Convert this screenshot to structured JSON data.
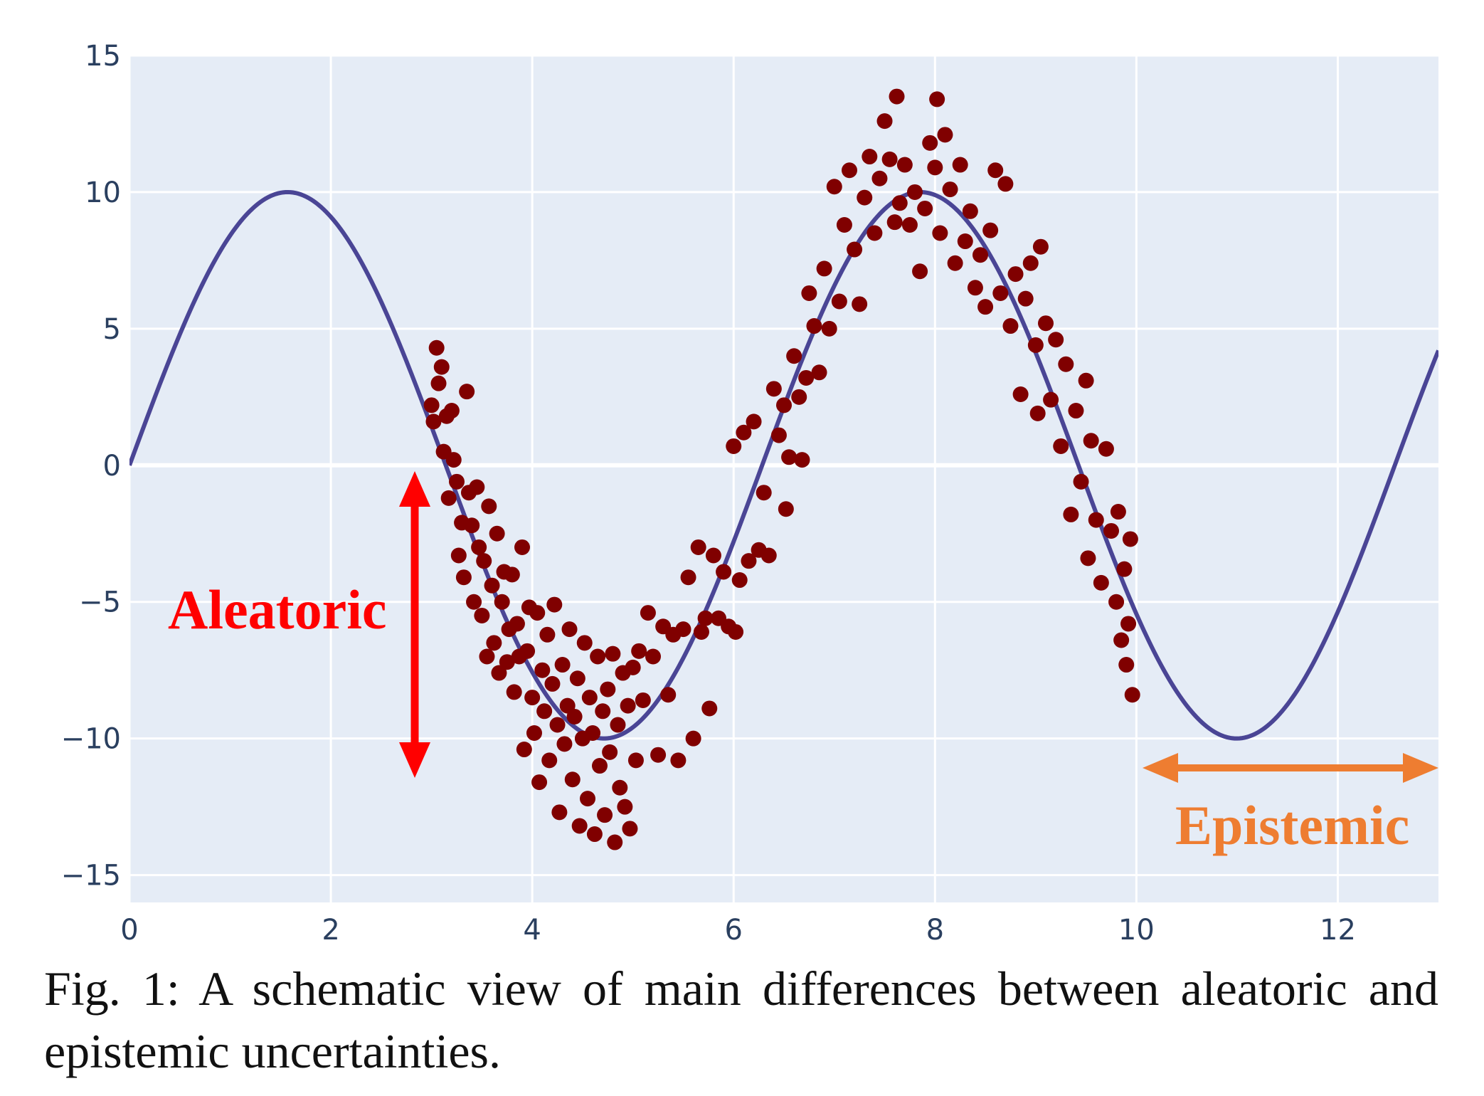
{
  "caption": {
    "text": "Fig. 1: A schematic view of main differences between aleatoric and epistemic uncertainties."
  },
  "chart_data": {
    "type": "scatter",
    "title": "",
    "xlabel": "",
    "ylabel": "",
    "xlim": [
      0,
      13
    ],
    "ylim": [
      -16,
      15
    ],
    "x_ticks": [
      0,
      2,
      4,
      6,
      8,
      10,
      12
    ],
    "y_ticks": [
      15,
      10,
      5,
      0,
      -5,
      -10,
      -15
    ],
    "y_tick_labels": [
      "15",
      "10",
      "5",
      "0",
      "−5",
      "−10",
      "−15"
    ],
    "grid": true,
    "background_color": "#e5ecf6",
    "curve": {
      "kind": "line",
      "function": "10*sin(x)",
      "x_range": [
        0,
        13
      ],
      "color": "#4a4595"
    },
    "points_color": "#800000",
    "points": [
      [
        3.0,
        2.2
      ],
      [
        3.02,
        1.6
      ],
      [
        3.05,
        4.3
      ],
      [
        3.07,
        3.0
      ],
      [
        3.1,
        3.6
      ],
      [
        3.12,
        0.5
      ],
      [
        3.15,
        1.8
      ],
      [
        3.17,
        -1.2
      ],
      [
        3.2,
        2.0
      ],
      [
        3.22,
        0.2
      ],
      [
        3.25,
        -0.6
      ],
      [
        3.27,
        -3.3
      ],
      [
        3.3,
        -2.1
      ],
      [
        3.32,
        -4.1
      ],
      [
        3.35,
        2.7
      ],
      [
        3.37,
        -1.0
      ],
      [
        3.4,
        -2.2
      ],
      [
        3.42,
        -5.0
      ],
      [
        3.45,
        -0.8
      ],
      [
        3.47,
        -3.0
      ],
      [
        3.5,
        -5.5
      ],
      [
        3.52,
        -3.5
      ],
      [
        3.55,
        -7.0
      ],
      [
        3.57,
        -1.5
      ],
      [
        3.6,
        -4.4
      ],
      [
        3.62,
        -6.5
      ],
      [
        3.65,
        -2.5
      ],
      [
        3.67,
        -7.6
      ],
      [
        3.7,
        -5.0
      ],
      [
        3.72,
        -3.9
      ],
      [
        3.75,
        -7.2
      ],
      [
        3.77,
        -6.0
      ],
      [
        3.8,
        -4.0
      ],
      [
        3.82,
        -8.3
      ],
      [
        3.85,
        -5.8
      ],
      [
        3.87,
        -7.0
      ],
      [
        3.9,
        -3.0
      ],
      [
        3.92,
        -10.4
      ],
      [
        3.95,
        -6.8
      ],
      [
        3.97,
        -5.2
      ],
      [
        4.0,
        -8.5
      ],
      [
        4.02,
        -9.8
      ],
      [
        4.05,
        -5.4
      ],
      [
        4.07,
        -11.6
      ],
      [
        4.1,
        -7.5
      ],
      [
        4.12,
        -9.0
      ],
      [
        4.15,
        -6.2
      ],
      [
        4.17,
        -10.8
      ],
      [
        4.2,
        -8.0
      ],
      [
        4.22,
        -5.1
      ],
      [
        4.25,
        -9.5
      ],
      [
        4.27,
        -12.7
      ],
      [
        4.3,
        -7.3
      ],
      [
        4.32,
        -10.2
      ],
      [
        4.35,
        -8.8
      ],
      [
        4.37,
        -6.0
      ],
      [
        4.4,
        -11.5
      ],
      [
        4.42,
        -9.2
      ],
      [
        4.45,
        -7.8
      ],
      [
        4.47,
        -13.2
      ],
      [
        4.5,
        -10.0
      ],
      [
        4.52,
        -6.5
      ],
      [
        4.55,
        -12.2
      ],
      [
        4.57,
        -8.5
      ],
      [
        4.6,
        -9.8
      ],
      [
        4.62,
        -13.5
      ],
      [
        4.65,
        -7.0
      ],
      [
        4.67,
        -11.0
      ],
      [
        4.7,
        -9.0
      ],
      [
        4.72,
        -12.8
      ],
      [
        4.75,
        -8.2
      ],
      [
        4.77,
        -10.5
      ],
      [
        4.8,
        -6.9
      ],
      [
        4.82,
        -13.8
      ],
      [
        4.85,
        -9.5
      ],
      [
        4.87,
        -11.8
      ],
      [
        4.9,
        -7.6
      ],
      [
        4.92,
        -12.5
      ],
      [
        4.95,
        -8.8
      ],
      [
        4.97,
        -13.3
      ],
      [
        5.0,
        -7.4
      ],
      [
        5.03,
        -10.8
      ],
      [
        5.06,
        -6.8
      ],
      [
        5.1,
        -8.6
      ],
      [
        5.15,
        -5.4
      ],
      [
        5.2,
        -7.0
      ],
      [
        5.25,
        -10.6
      ],
      [
        5.3,
        -5.9
      ],
      [
        5.35,
        -8.4
      ],
      [
        5.4,
        -6.2
      ],
      [
        5.45,
        -10.8
      ],
      [
        5.5,
        -6.0
      ],
      [
        5.55,
        -4.1
      ],
      [
        5.6,
        -10.0
      ],
      [
        5.65,
        -3.0
      ],
      [
        5.68,
        -6.1
      ],
      [
        5.72,
        -5.6
      ],
      [
        5.76,
        -8.9
      ],
      [
        5.8,
        -3.3
      ],
      [
        5.85,
        -5.6
      ],
      [
        5.9,
        -3.9
      ],
      [
        5.95,
        -5.9
      ],
      [
        6.0,
        0.7
      ],
      [
        6.02,
        -6.1
      ],
      [
        6.06,
        -4.2
      ],
      [
        6.1,
        1.2
      ],
      [
        6.15,
        -3.5
      ],
      [
        6.2,
        1.6
      ],
      [
        6.25,
        -3.1
      ],
      [
        6.3,
        -1.0
      ],
      [
        6.35,
        -3.3
      ],
      [
        6.4,
        2.8
      ],
      [
        6.45,
        1.1
      ],
      [
        6.5,
        2.2
      ],
      [
        6.52,
        -1.6
      ],
      [
        6.55,
        0.3
      ],
      [
        6.6,
        4.0
      ],
      [
        6.65,
        2.5
      ],
      [
        6.68,
        0.2
      ],
      [
        6.72,
        3.2
      ],
      [
        6.75,
        6.3
      ],
      [
        6.8,
        5.1
      ],
      [
        6.85,
        3.4
      ],
      [
        6.9,
        7.2
      ],
      [
        6.95,
        5.0
      ],
      [
        7.0,
        10.2
      ],
      [
        7.05,
        6.0
      ],
      [
        7.1,
        8.8
      ],
      [
        7.15,
        10.8
      ],
      [
        7.2,
        7.9
      ],
      [
        7.25,
        5.9
      ],
      [
        7.3,
        9.8
      ],
      [
        7.35,
        11.3
      ],
      [
        7.4,
        8.5
      ],
      [
        7.45,
        10.5
      ],
      [
        7.5,
        12.6
      ],
      [
        7.55,
        11.2
      ],
      [
        7.6,
        8.9
      ],
      [
        7.62,
        13.5
      ],
      [
        7.65,
        9.6
      ],
      [
        7.7,
        11.0
      ],
      [
        7.75,
        8.8
      ],
      [
        7.8,
        10.0
      ],
      [
        7.85,
        7.1
      ],
      [
        7.9,
        9.4
      ],
      [
        7.95,
        11.8
      ],
      [
        8.0,
        10.9
      ],
      [
        8.02,
        13.4
      ],
      [
        8.05,
        8.5
      ],
      [
        8.1,
        12.1
      ],
      [
        8.15,
        10.1
      ],
      [
        8.2,
        7.4
      ],
      [
        8.25,
        11.0
      ],
      [
        8.3,
        8.2
      ],
      [
        8.35,
        9.3
      ],
      [
        8.4,
        6.5
      ],
      [
        8.45,
        7.7
      ],
      [
        8.5,
        5.8
      ],
      [
        8.55,
        8.6
      ],
      [
        8.6,
        10.8
      ],
      [
        8.65,
        6.3
      ],
      [
        8.7,
        10.3
      ],
      [
        8.75,
        5.1
      ],
      [
        8.8,
        7.0
      ],
      [
        8.85,
        2.6
      ],
      [
        8.9,
        6.1
      ],
      [
        8.95,
        7.4
      ],
      [
        9.0,
        4.4
      ],
      [
        9.02,
        1.9
      ],
      [
        9.05,
        8.0
      ],
      [
        9.1,
        5.2
      ],
      [
        9.15,
        2.4
      ],
      [
        9.2,
        4.6
      ],
      [
        9.25,
        0.7
      ],
      [
        9.3,
        3.7
      ],
      [
        9.35,
        -1.8
      ],
      [
        9.4,
        2.0
      ],
      [
        9.45,
        -0.6
      ],
      [
        9.5,
        3.1
      ],
      [
        9.52,
        -3.4
      ],
      [
        9.55,
        0.9
      ],
      [
        9.6,
        -2.0
      ],
      [
        9.65,
        -4.3
      ],
      [
        9.7,
        0.6
      ],
      [
        9.75,
        -2.4
      ],
      [
        9.8,
        -5.0
      ],
      [
        9.82,
        -1.7
      ],
      [
        9.85,
        -6.4
      ],
      [
        9.88,
        -3.8
      ],
      [
        9.9,
        -7.3
      ],
      [
        9.92,
        -5.8
      ],
      [
        9.94,
        -2.7
      ],
      [
        9.96,
        -8.4
      ]
    ],
    "annotations": [
      {
        "text": "Aleatoric",
        "color": "#ff0000",
        "arrow": "vertical double-headed"
      },
      {
        "text": "Epistemic",
        "color": "#ee7d31",
        "arrow": "horizontal double-headed"
      }
    ]
  }
}
